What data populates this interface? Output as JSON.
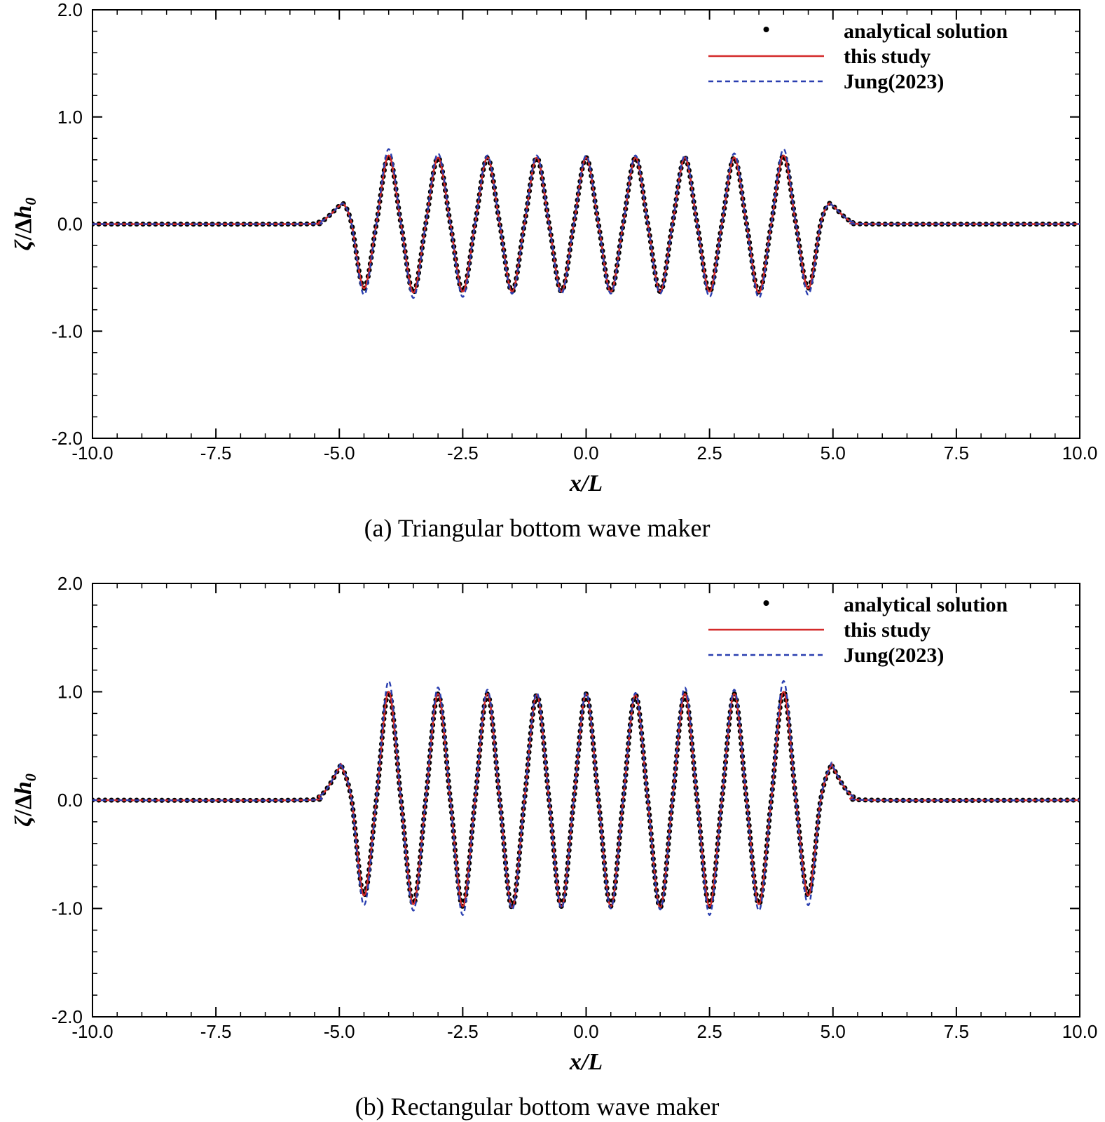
{
  "chart_data": [
    {
      "type": "line",
      "caption": "(a)  Triangular bottom wave maker",
      "xlabel": "x/L",
      "ylabel": "ζ/Δh₀",
      "ylabel_parts": {
        "zeta": "ζ",
        "sep": "/Δ",
        "h": "h",
        "sub": "0"
      },
      "xlim": [
        -10,
        10
      ],
      "ylim": [
        -2,
        2
      ],
      "xticks": [
        "-10.0",
        "-7.5",
        "-5.0",
        "-2.5",
        "0.0",
        "2.5",
        "5.0",
        "7.5",
        "10.0"
      ],
      "yticks": [
        "-2.0",
        "-1.0",
        "0.0",
        "1.0",
        "2.0"
      ],
      "legend_position": "top-right",
      "grid": false,
      "series": [
        {
          "name": "analytical solution",
          "style": "dots",
          "color": "#000000",
          "x": [
            -10,
            -5.8,
            -5.4,
            -5.2,
            -5.0,
            -4.9,
            -4.75,
            -4.5,
            -4.25,
            -4.0,
            -3.75,
            -3.5,
            -3.25,
            -3.0,
            -2.75,
            -2.5,
            -2.25,
            -2.0,
            -1.75,
            -1.5,
            -1.25,
            -1.0,
            -0.75,
            -0.5,
            -0.25,
            0.0,
            0.25,
            0.5,
            0.75,
            1.0,
            1.25,
            1.5,
            1.75,
            2.0,
            2.25,
            2.5,
            2.75,
            3.0,
            3.25,
            3.5,
            3.75,
            4.0,
            4.25,
            4.5,
            4.75,
            4.9,
            5.0,
            5.2,
            5.4,
            5.8,
            10
          ],
          "y": [
            0,
            0,
            0.02,
            0.08,
            0.17,
            0.18,
            0.0,
            -0.6,
            0.0,
            0.64,
            0.0,
            -0.64,
            0.0,
            0.62,
            0.0,
            -0.63,
            0.0,
            0.62,
            0.0,
            -0.63,
            0.0,
            0.62,
            0.0,
            -0.63,
            0.0,
            0.62,
            0.0,
            -0.63,
            0.0,
            0.62,
            0.0,
            -0.63,
            0.0,
            0.62,
            0.0,
            -0.63,
            0.0,
            0.62,
            0.0,
            -0.64,
            0.0,
            0.64,
            0.0,
            -0.6,
            0.0,
            0.18,
            0.17,
            0.08,
            0.02,
            0,
            0
          ]
        },
        {
          "name": "this study",
          "style": "solid",
          "color": "#d42a2a",
          "x": [
            -10,
            -5.8,
            -5.4,
            -5.2,
            -5.0,
            -4.9,
            -4.75,
            -4.5,
            -4.25,
            -4.0,
            -3.75,
            -3.5,
            -3.25,
            -3.0,
            -2.75,
            -2.5,
            -2.25,
            -2.0,
            -1.75,
            -1.5,
            -1.25,
            -1.0,
            -0.75,
            -0.5,
            -0.25,
            0.0,
            0.25,
            0.5,
            0.75,
            1.0,
            1.25,
            1.5,
            1.75,
            2.0,
            2.25,
            2.5,
            2.75,
            3.0,
            3.25,
            3.5,
            3.75,
            4.0,
            4.25,
            4.5,
            4.75,
            4.9,
            5.0,
            5.2,
            5.4,
            5.8,
            10
          ],
          "y": [
            0,
            0,
            0.02,
            0.08,
            0.17,
            0.18,
            0.0,
            -0.6,
            0.0,
            0.64,
            0.0,
            -0.64,
            0.0,
            0.62,
            0.0,
            -0.63,
            0.0,
            0.62,
            0.0,
            -0.63,
            0.0,
            0.62,
            0.0,
            -0.63,
            0.0,
            0.62,
            0.0,
            -0.63,
            0.0,
            0.62,
            0.0,
            -0.63,
            0.0,
            0.62,
            0.0,
            -0.63,
            0.0,
            0.62,
            0.0,
            -0.64,
            0.0,
            0.64,
            0.0,
            -0.6,
            0.0,
            0.18,
            0.17,
            0.08,
            0.02,
            0,
            0
          ]
        },
        {
          "name": "Jung(2023)",
          "style": "dashed",
          "color": "#2a3fb0",
          "x": [
            -10,
            -5.8,
            -5.4,
            -5.2,
            -5.0,
            -4.9,
            -4.75,
            -4.5,
            -4.25,
            -4.0,
            -3.75,
            -3.5,
            -3.25,
            -3.0,
            -2.75,
            -2.5,
            -2.25,
            -2.0,
            -1.75,
            -1.5,
            -1.25,
            -1.0,
            -0.75,
            -0.5,
            -0.25,
            0.0,
            0.25,
            0.5,
            0.75,
            1.0,
            1.25,
            1.5,
            1.75,
            2.0,
            2.25,
            2.5,
            2.75,
            3.0,
            3.25,
            3.5,
            3.75,
            4.0,
            4.25,
            4.5,
            4.75,
            4.9,
            5.0,
            5.2,
            5.4,
            5.8,
            10
          ],
          "y": [
            0,
            0,
            0.02,
            0.08,
            0.17,
            0.18,
            0.0,
            -0.66,
            0.0,
            0.7,
            0.0,
            -0.69,
            0.0,
            0.66,
            0.0,
            -0.68,
            0.0,
            0.64,
            0.0,
            -0.65,
            0.0,
            0.64,
            0.0,
            -0.65,
            0.0,
            0.64,
            0.0,
            -0.65,
            0.0,
            0.64,
            0.0,
            -0.65,
            0.0,
            0.64,
            0.0,
            -0.68,
            0.0,
            0.66,
            0.0,
            -0.69,
            0.0,
            0.7,
            0.0,
            -0.66,
            0.0,
            0.18,
            0.17,
            0.08,
            0.02,
            0,
            0
          ]
        }
      ]
    },
    {
      "type": "line",
      "caption": "(b) Rectangular bottom wave maker",
      "xlabel": "x/L",
      "ylabel": "ζ/Δh₀",
      "ylabel_parts": {
        "zeta": "ζ",
        "sep": "/Δ",
        "h": "h",
        "sub": "0"
      },
      "xlim": [
        -10,
        10
      ],
      "ylim": [
        -2,
        2
      ],
      "xticks": [
        "-10.0",
        "-7.5",
        "-5.0",
        "-2.5",
        "0.0",
        "2.5",
        "5.0",
        "7.5",
        "10.0"
      ],
      "yticks": [
        "-2.0",
        "-1.0",
        "0.0",
        "1.0",
        "2.0"
      ],
      "legend_position": "top-right",
      "grid": false,
      "series": [
        {
          "name": "analytical solution",
          "style": "dots",
          "color": "#000000",
          "x": [
            -10,
            -5.8,
            -5.4,
            -5.2,
            -5.0,
            -4.95,
            -4.75,
            -4.5,
            -4.25,
            -4.0,
            -3.75,
            -3.5,
            -3.25,
            -3.0,
            -2.75,
            -2.5,
            -2.25,
            -2.0,
            -1.75,
            -1.5,
            -1.25,
            -1.0,
            -0.75,
            -0.5,
            -0.25,
            0.0,
            0.25,
            0.5,
            0.75,
            1.0,
            1.25,
            1.5,
            1.75,
            2.0,
            2.25,
            2.5,
            2.75,
            3.0,
            3.25,
            3.5,
            3.75,
            4.0,
            4.25,
            4.5,
            4.75,
            4.95,
            5.0,
            5.2,
            5.4,
            5.8,
            10
          ],
          "y": [
            0,
            0,
            0.04,
            0.14,
            0.3,
            0.31,
            0.0,
            -0.88,
            0.0,
            1.0,
            0.0,
            -0.96,
            0.0,
            0.98,
            0.0,
            -0.98,
            0.0,
            0.98,
            0.0,
            -0.99,
            0.0,
            0.97,
            0.0,
            -0.98,
            0.0,
            0.98,
            0.0,
            -0.98,
            0.0,
            0.97,
            0.0,
            -0.99,
            0.0,
            0.98,
            0.0,
            -0.98,
            0.0,
            0.98,
            0.0,
            -0.96,
            0.0,
            1.0,
            0.0,
            -0.88,
            0.0,
            0.31,
            0.3,
            0.14,
            0.04,
            0,
            0
          ]
        },
        {
          "name": "this study",
          "style": "solid",
          "color": "#d42a2a",
          "x": [
            -10,
            -5.8,
            -5.4,
            -5.2,
            -5.0,
            -4.95,
            -4.75,
            -4.5,
            -4.25,
            -4.0,
            -3.75,
            -3.5,
            -3.25,
            -3.0,
            -2.75,
            -2.5,
            -2.25,
            -2.0,
            -1.75,
            -1.5,
            -1.25,
            -1.0,
            -0.75,
            -0.5,
            -0.25,
            0.0,
            0.25,
            0.5,
            0.75,
            1.0,
            1.25,
            1.5,
            1.75,
            2.0,
            2.25,
            2.5,
            2.75,
            3.0,
            3.25,
            3.5,
            3.75,
            4.0,
            4.25,
            4.5,
            4.75,
            4.95,
            5.0,
            5.2,
            5.4,
            5.8,
            10
          ],
          "y": [
            0,
            0,
            0.04,
            0.14,
            0.3,
            0.31,
            0.0,
            -0.88,
            0.0,
            1.0,
            0.0,
            -0.96,
            0.0,
            0.98,
            0.0,
            -0.98,
            0.0,
            0.98,
            0.0,
            -0.99,
            0.0,
            0.97,
            0.0,
            -0.98,
            0.0,
            0.98,
            0.0,
            -0.98,
            0.0,
            0.97,
            0.0,
            -0.99,
            0.0,
            0.98,
            0.0,
            -0.98,
            0.0,
            0.98,
            0.0,
            -0.96,
            0.0,
            1.0,
            0.0,
            -0.88,
            0.0,
            0.31,
            0.3,
            0.14,
            0.04,
            0,
            0
          ]
        },
        {
          "name": "Jung(2023)",
          "style": "dashed",
          "color": "#2a3fb0",
          "x": [
            -10,
            -5.8,
            -5.4,
            -5.2,
            -5.0,
            -4.95,
            -4.75,
            -4.5,
            -4.25,
            -4.0,
            -3.75,
            -3.5,
            -3.25,
            -3.0,
            -2.75,
            -2.5,
            -2.25,
            -2.0,
            -1.75,
            -1.5,
            -1.25,
            -1.0,
            -0.75,
            -0.5,
            -0.25,
            0.0,
            0.25,
            0.5,
            0.75,
            1.0,
            1.25,
            1.5,
            1.75,
            2.0,
            2.25,
            2.5,
            2.75,
            3.0,
            3.25,
            3.5,
            3.75,
            4.0,
            4.25,
            4.5,
            4.75,
            4.95,
            5.0,
            5.2,
            5.4,
            5.8,
            10
          ],
          "y": [
            0,
            0,
            0.04,
            0.14,
            0.31,
            0.32,
            0.0,
            -0.97,
            0.0,
            1.1,
            0.0,
            -1.02,
            0.0,
            1.04,
            0.0,
            -1.06,
            0.0,
            1.02,
            0.0,
            -1.01,
            0.0,
            0.99,
            0.0,
            -1.0,
            0.0,
            0.99,
            0.0,
            -1.0,
            0.0,
            0.99,
            0.0,
            -1.01,
            0.0,
            1.04,
            0.0,
            -1.06,
            0.0,
            1.02,
            0.0,
            -1.02,
            0.0,
            1.1,
            0.0,
            -0.97,
            0.0,
            0.32,
            0.31,
            0.14,
            0.04,
            0,
            0
          ]
        }
      ]
    }
  ]
}
